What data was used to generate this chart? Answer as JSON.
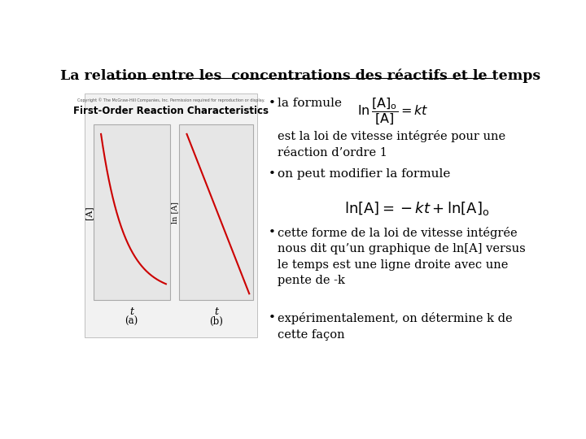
{
  "title": "La relation entre les  concentrations des réactifs et le temps",
  "background_color": "#ffffff",
  "text_color": "#000000",
  "bullet_points": [
    "la formule",
    "on peut modifier la formule",
    "cette forme de la loi de vitesse intégrée\nnous dit qu’un graphique de ln[A] versus\nle temps est une ligne droite avec une\npente de -k",
    "expérimentalement, on détermine k de\ncette façon"
  ],
  "body_text1": "est la loi de vitesse intégrée pour une\nréaction d’ordre 1",
  "image_label": "First-Order Reaction Characteristics",
  "copyright_text": "Copyright © The McGraw-Hill Companies, Inc. Permission required for reproduction or display.",
  "sub_a": "(a)",
  "sub_b": "(b)"
}
